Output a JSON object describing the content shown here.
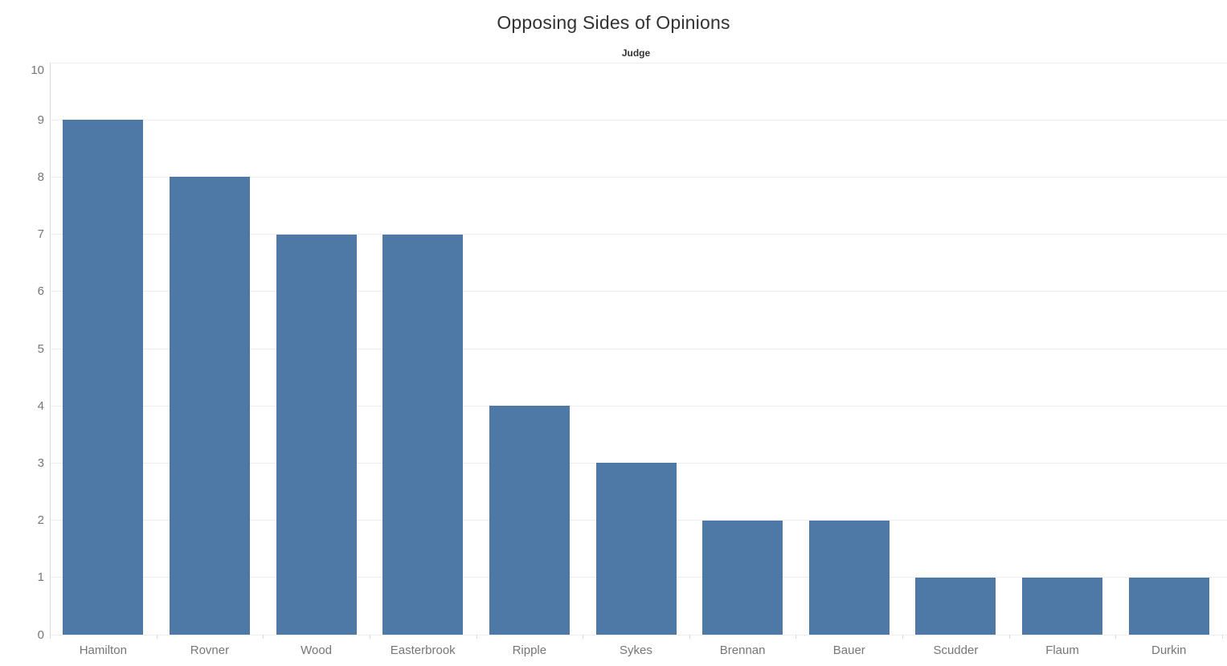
{
  "header": {
    "title": "Opposing Sides of Opinions",
    "x_axis_title": "Judge"
  },
  "chart_data": {
    "type": "bar",
    "title": "Opposing Sides of Opinions",
    "xlabel": "Judge",
    "ylabel": "",
    "categories": [
      "Hamilton",
      "Rovner",
      "Wood",
      "Easterbrook",
      "Ripple",
      "Sykes",
      "Brennan",
      "Bauer",
      "Scudder",
      "Flaum",
      "Durkin"
    ],
    "values": [
      9,
      8,
      7,
      7,
      4,
      3,
      2,
      2,
      1,
      1,
      1
    ],
    "ylim": [
      0,
      10
    ],
    "y_ticks": [
      0,
      1,
      2,
      3,
      4,
      5,
      6,
      7,
      8,
      9,
      10
    ],
    "grid": true,
    "legend": "none",
    "bar_color": "#4e79a7"
  },
  "colors": {
    "bar": "#4e79a7",
    "title_text": "#323232",
    "axis_title_text": "#333333",
    "axis_tick_text": "#767676",
    "gridline": "#ededed",
    "axis_line": "#d9d9d9",
    "background": "#ffffff"
  }
}
